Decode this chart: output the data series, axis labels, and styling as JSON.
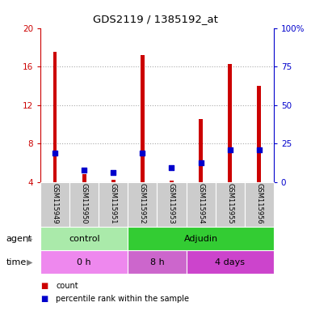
{
  "title": "GDS2119 / 1385192_at",
  "samples": [
    "GSM115949",
    "GSM115950",
    "GSM115951",
    "GSM115952",
    "GSM115953",
    "GSM115954",
    "GSM115955",
    "GSM115956"
  ],
  "red_values": [
    17.5,
    4.8,
    4.2,
    17.2,
    4.1,
    10.5,
    16.3,
    14.0
  ],
  "blue_values": [
    7.0,
    5.2,
    5.0,
    7.0,
    5.5,
    6.0,
    7.3,
    7.3
  ],
  "ylim_left": [
    4,
    20
  ],
  "ylim_right": [
    0,
    100
  ],
  "yticks_left": [
    4,
    8,
    12,
    16,
    20
  ],
  "yticks_right": [
    0,
    25,
    50,
    75,
    100
  ],
  "ytick_labels_right": [
    "0",
    "25",
    "50",
    "75",
    "100%"
  ],
  "agent_groups": [
    {
      "label": "control",
      "start": 0,
      "end": 3,
      "color": "#aaeaaa"
    },
    {
      "label": "Adjudin",
      "start": 3,
      "end": 8,
      "color": "#33cc33"
    }
  ],
  "time_groups": [
    {
      "label": "0 h",
      "start": 0,
      "end": 3,
      "color": "#ee88ee"
    },
    {
      "label": "8 h",
      "start": 3,
      "end": 5,
      "color": "#cc66cc"
    },
    {
      "label": "4 days",
      "start": 5,
      "end": 8,
      "color": "#cc44cc"
    }
  ],
  "bar_color": "#cc0000",
  "dot_color": "#0000cc",
  "grid_color": "#aaaaaa",
  "label_color_left": "#cc0000",
  "label_color_right": "#0000cc",
  "sample_bg_color": "#cccccc"
}
